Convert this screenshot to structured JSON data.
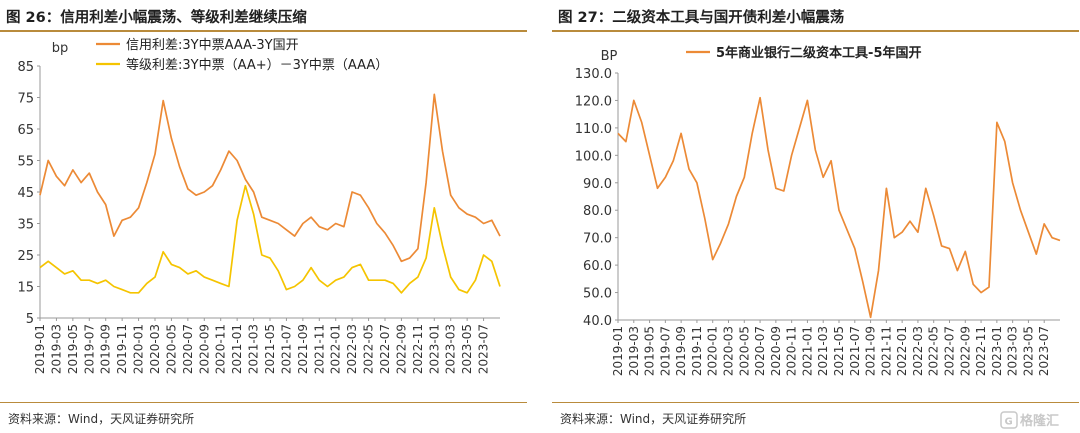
{
  "left": {
    "title": "图 26：信用利差小幅震荡、等级利差继续压缩",
    "source": "资料来源：Wind，天风证券研究所",
    "chart_data": {
      "type": "line",
      "ylabel": "bp",
      "ylim": [
        5,
        85
      ],
      "yticks": [
        5,
        15,
        25,
        35,
        45,
        55,
        65,
        75,
        85
      ],
      "xlim": [
        "2019-01",
        "2023-09"
      ],
      "xticks": [
        "2019-01",
        "2019-03",
        "2019-05",
        "2019-07",
        "2019-09",
        "2019-11",
        "2020-01",
        "2020-03",
        "2020-05",
        "2020-07",
        "2020-09",
        "2020-11",
        "2021-01",
        "2021-03",
        "2021-05",
        "2021-07",
        "2021-09",
        "2021-11",
        "2022-01",
        "2022-03",
        "2022-05",
        "2022-07",
        "2022-09",
        "2022-11",
        "2023-01",
        "2023-03",
        "2023-05",
        "2023-07"
      ],
      "legend_position": "top",
      "series": [
        {
          "name": "信用利差:3Y中票AAA-3Y国开",
          "color": "#ec8a36",
          "points": [
            [
              "2019-01",
              44
            ],
            [
              "2019-02",
              55
            ],
            [
              "2019-03",
              50
            ],
            [
              "2019-04",
              47
            ],
            [
              "2019-05",
              52
            ],
            [
              "2019-06",
              48
            ],
            [
              "2019-07",
              51
            ],
            [
              "2019-08",
              45
            ],
            [
              "2019-09",
              41
            ],
            [
              "2019-10",
              31
            ],
            [
              "2019-11",
              36
            ],
            [
              "2019-12",
              37
            ],
            [
              "2020-01",
              40
            ],
            [
              "2020-02",
              48
            ],
            [
              "2020-03",
              57
            ],
            [
              "2020-04",
              74
            ],
            [
              "2020-05",
              62
            ],
            [
              "2020-06",
              53
            ],
            [
              "2020-07",
              46
            ],
            [
              "2020-08",
              44
            ],
            [
              "2020-09",
              45
            ],
            [
              "2020-10",
              47
            ],
            [
              "2020-11",
              52
            ],
            [
              "2020-12",
              58
            ],
            [
              "2021-01",
              55
            ],
            [
              "2021-02",
              49
            ],
            [
              "2021-03",
              45
            ],
            [
              "2021-04",
              37
            ],
            [
              "2021-05",
              36
            ],
            [
              "2021-06",
              35
            ],
            [
              "2021-07",
              33
            ],
            [
              "2021-08",
              31
            ],
            [
              "2021-09",
              35
            ],
            [
              "2021-10",
              37
            ],
            [
              "2021-11",
              34
            ],
            [
              "2021-12",
              33
            ],
            [
              "2022-01",
              35
            ],
            [
              "2022-02",
              34
            ],
            [
              "2022-03",
              45
            ],
            [
              "2022-04",
              44
            ],
            [
              "2022-05",
              40
            ],
            [
              "2022-06",
              35
            ],
            [
              "2022-07",
              32
            ],
            [
              "2022-08",
              28
            ],
            [
              "2022-09",
              23
            ],
            [
              "2022-10",
              24
            ],
            [
              "2022-11",
              27
            ],
            [
              "2022-12",
              48
            ],
            [
              "2023-01",
              76
            ],
            [
              "2023-02",
              58
            ],
            [
              "2023-03",
              44
            ],
            [
              "2023-04",
              40
            ],
            [
              "2023-05",
              38
            ],
            [
              "2023-06",
              37
            ],
            [
              "2023-07",
              35
            ],
            [
              "2023-08",
              36
            ],
            [
              "2023-09",
              31
            ]
          ]
        },
        {
          "name": "等级利差:3Y中票（AA+）－3Y中票（AAA）",
          "color": "#f5c400",
          "points": [
            [
              "2019-01",
              21
            ],
            [
              "2019-02",
              23
            ],
            [
              "2019-03",
              21
            ],
            [
              "2019-04",
              19
            ],
            [
              "2019-05",
              20
            ],
            [
              "2019-06",
              17
            ],
            [
              "2019-07",
              17
            ],
            [
              "2019-08",
              16
            ],
            [
              "2019-09",
              17
            ],
            [
              "2019-10",
              15
            ],
            [
              "2019-11",
              14
            ],
            [
              "2019-12",
              13
            ],
            [
              "2020-01",
              13
            ],
            [
              "2020-02",
              16
            ],
            [
              "2020-03",
              18
            ],
            [
              "2020-04",
              26
            ],
            [
              "2020-05",
              22
            ],
            [
              "2020-06",
              21
            ],
            [
              "2020-07",
              19
            ],
            [
              "2020-08",
              20
            ],
            [
              "2020-09",
              18
            ],
            [
              "2020-10",
              17
            ],
            [
              "2020-11",
              16
            ],
            [
              "2020-12",
              15
            ],
            [
              "2021-01",
              36
            ],
            [
              "2021-02",
              47
            ],
            [
              "2021-03",
              38
            ],
            [
              "2021-04",
              25
            ],
            [
              "2021-05",
              24
            ],
            [
              "2021-06",
              20
            ],
            [
              "2021-07",
              14
            ],
            [
              "2021-08",
              15
            ],
            [
              "2021-09",
              17
            ],
            [
              "2021-10",
              21
            ],
            [
              "2021-11",
              17
            ],
            [
              "2021-12",
              15
            ],
            [
              "2022-01",
              17
            ],
            [
              "2022-02",
              18
            ],
            [
              "2022-03",
              21
            ],
            [
              "2022-04",
              22
            ],
            [
              "2022-05",
              17
            ],
            [
              "2022-06",
              17
            ],
            [
              "2022-07",
              17
            ],
            [
              "2022-08",
              16
            ],
            [
              "2022-09",
              13
            ],
            [
              "2022-10",
              16
            ],
            [
              "2022-11",
              18
            ],
            [
              "2022-12",
              24
            ],
            [
              "2023-01",
              40
            ],
            [
              "2023-02",
              28
            ],
            [
              "2023-03",
              18
            ],
            [
              "2023-04",
              14
            ],
            [
              "2023-05",
              13
            ],
            [
              "2023-06",
              17
            ],
            [
              "2023-07",
              25
            ],
            [
              "2023-08",
              23
            ],
            [
              "2023-09",
              15
            ]
          ]
        }
      ]
    }
  },
  "right": {
    "title": "图 27：二级资本工具与国开债利差小幅震荡",
    "source": "资料来源：Wind，天风证券研究所",
    "chart_data": {
      "type": "line",
      "ylabel": "BP",
      "ylim": [
        40,
        130
      ],
      "yticks": [
        "40.0",
        "50.0",
        "60.0",
        "70.0",
        "80.0",
        "90.0",
        "100.0",
        "110.0",
        "120.0",
        "130.0"
      ],
      "xlim": [
        "2019-01",
        "2023-09"
      ],
      "xticks": [
        "2019-01",
        "2019-03",
        "2019-05",
        "2019-07",
        "2019-09",
        "2019-11",
        "2020-01",
        "2020-03",
        "2020-05",
        "2020-07",
        "2020-09",
        "2020-11",
        "2021-01",
        "2021-03",
        "2021-05",
        "2021-07",
        "2021-09",
        "2021-11",
        "2022-01",
        "2022-03",
        "2022-05",
        "2022-07",
        "2022-09",
        "2022-11",
        "2023-01",
        "2023-03",
        "2023-05",
        "2023-07"
      ],
      "legend_position": "top",
      "series": [
        {
          "name": "5年商业银行二级资本工具-5年国开",
          "color": "#ec8a36",
          "points": [
            [
              "2019-01",
              108
            ],
            [
              "2019-02",
              105
            ],
            [
              "2019-03",
              120
            ],
            [
              "2019-04",
              112
            ],
            [
              "2019-05",
              100
            ],
            [
              "2019-06",
              88
            ],
            [
              "2019-07",
              92
            ],
            [
              "2019-08",
              98
            ],
            [
              "2019-09",
              108
            ],
            [
              "2019-10",
              95
            ],
            [
              "2019-11",
              90
            ],
            [
              "2019-12",
              77
            ],
            [
              "2020-01",
              62
            ],
            [
              "2020-02",
              68
            ],
            [
              "2020-03",
              75
            ],
            [
              "2020-04",
              85
            ],
            [
              "2020-05",
              92
            ],
            [
              "2020-06",
              108
            ],
            [
              "2020-07",
              121
            ],
            [
              "2020-08",
              102
            ],
            [
              "2020-09",
              88
            ],
            [
              "2020-10",
              87
            ],
            [
              "2020-11",
              100
            ],
            [
              "2020-12",
              110
            ],
            [
              "2021-01",
              120
            ],
            [
              "2021-02",
              102
            ],
            [
              "2021-03",
              92
            ],
            [
              "2021-04",
              98
            ],
            [
              "2021-05",
              80
            ],
            [
              "2021-06",
              73
            ],
            [
              "2021-07",
              66
            ],
            [
              "2021-08",
              54
            ],
            [
              "2021-09",
              41
            ],
            [
              "2021-10",
              58
            ],
            [
              "2021-11",
              88
            ],
            [
              "2021-12",
              70
            ],
            [
              "2022-01",
              72
            ],
            [
              "2022-02",
              76
            ],
            [
              "2022-03",
              72
            ],
            [
              "2022-04",
              88
            ],
            [
              "2022-05",
              78
            ],
            [
              "2022-06",
              67
            ],
            [
              "2022-07",
              66
            ],
            [
              "2022-08",
              58
            ],
            [
              "2022-09",
              65
            ],
            [
              "2022-10",
              53
            ],
            [
              "2022-11",
              50
            ],
            [
              "2022-12",
              52
            ],
            [
              "2023-01",
              112
            ],
            [
              "2023-02",
              105
            ],
            [
              "2023-03",
              90
            ],
            [
              "2023-04",
              80
            ],
            [
              "2023-05",
              72
            ],
            [
              "2023-06",
              64
            ],
            [
              "2023-07",
              75
            ],
            [
              "2023-08",
              70
            ],
            [
              "2023-09",
              69
            ]
          ]
        }
      ]
    }
  },
  "watermark": {
    "label": "格隆汇"
  }
}
